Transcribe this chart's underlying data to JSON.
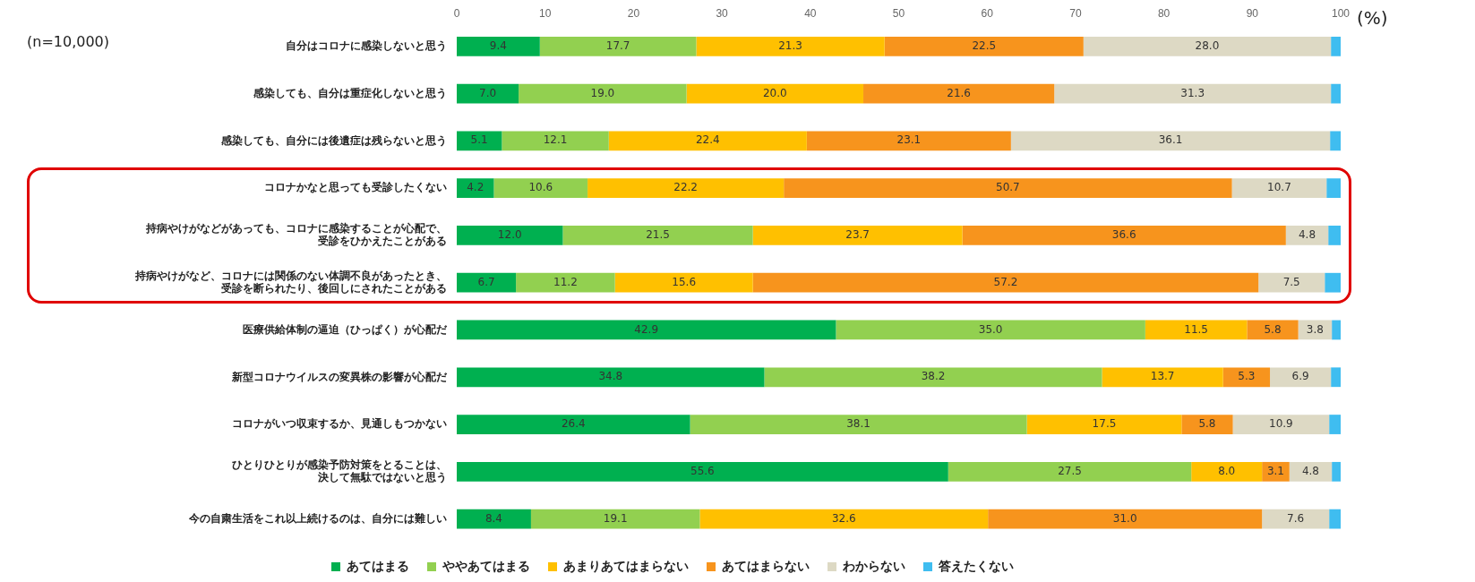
{
  "chart_data": {
    "type": "bar",
    "orientation": "horizontal",
    "stacked": true,
    "xlabel": "(%)",
    "annotations": [
      "(n=10,000)"
    ],
    "categories": [
      "自分はコロナに感染しないと思う",
      "感染しても、自分は重症化しないと思う",
      "感染しても、自分には後遺症は残らないと思う",
      "コロナかなと思っても受診したくない",
      "持病やけがなどがあっても、コロナに感染することが心配で、受診をひかえたことがある",
      "持病やけがなど、コロナには関係のない体調不良があったとき、受診を断られたり、後回しにされたことがある",
      "医療供給体制の逼迫（ひっぱく）が心配だ",
      "新型コロナウイルスの変異株の影響が心配だ",
      "コロナがいつ収束するか、見通しもつかない",
      "ひとりひとりが感染予防対策をとることは、決して無駄ではないと思う",
      "今の自粛生活をこれ以上続けるのは、自分には難しい"
    ],
    "xlim": [
      0,
      100
    ],
    "xticks": [
      0,
      10,
      20,
      30,
      40,
      50,
      60,
      70,
      80,
      90,
      100
    ],
    "grid": false,
    "legend": "bottom",
    "series": [
      {
        "name": "あてはまる",
        "color": "#00b050",
        "values": [
          9.4,
          7.0,
          5.1,
          4.2,
          12.0,
          6.7,
          42.9,
          34.8,
          26.4,
          55.6,
          8.4
        ],
        "value_labels": [
          "9.4",
          "7.0",
          "5.1",
          "4.2",
          "12.0",
          "6.7",
          "42.9",
          "34.8",
          "26.4",
          "55.6",
          "8.4"
        ]
      },
      {
        "name": "ややあてはまる",
        "color": "#92d050",
        "values": [
          17.7,
          19.0,
          12.1,
          10.6,
          21.5,
          11.2,
          35.0,
          38.2,
          38.1,
          27.5,
          19.1
        ],
        "value_labels": [
          "17.7",
          "19.0",
          "12.1",
          "10.6",
          "21.5",
          "11.2",
          "35.0",
          "38.2",
          "38.1",
          "27.5",
          "19.1"
        ]
      },
      {
        "name": "あまりあてはまらない",
        "color": "#ffc000",
        "values": [
          21.3,
          20.0,
          22.4,
          22.2,
          23.7,
          15.6,
          11.5,
          13.7,
          17.5,
          8.0,
          32.6
        ],
        "value_labels": [
          "21.3",
          "20.0",
          "22.4",
          "22.2",
          "23.7",
          "15.6",
          "11.5",
          "13.7",
          "17.5",
          "8.0",
          "32.6"
        ]
      },
      {
        "name": "あてはまらない",
        "color": "#f7941d",
        "values": [
          22.5,
          21.6,
          23.1,
          50.7,
          36.6,
          57.2,
          5.8,
          5.3,
          5.8,
          3.1,
          31.0
        ],
        "value_labels": [
          "22.5",
          "21.6",
          "23.1",
          "50.7",
          "36.6",
          "57.2",
          "5.8",
          "5.3",
          "5.8",
          "3.1",
          "31.0"
        ]
      },
      {
        "name": "わからない",
        "color": "#ddd9c4",
        "values": [
          28.0,
          31.3,
          36.1,
          10.7,
          4.8,
          7.5,
          3.8,
          6.9,
          10.9,
          4.8,
          7.6
        ],
        "value_labels": [
          "28.0",
          "31.3",
          "36.1",
          "10.7",
          "4.8",
          "7.5",
          "3.8",
          "6.9",
          "10.9",
          "4.8",
          "7.6"
        ]
      },
      {
        "name": "答えたくない",
        "color": "#3fbdf0",
        "values": [
          1.1,
          1.1,
          1.2,
          1.6,
          1.4,
          1.8,
          1.0,
          1.1,
          1.3,
          1.0,
          1.3
        ]
      }
    ]
  }
}
